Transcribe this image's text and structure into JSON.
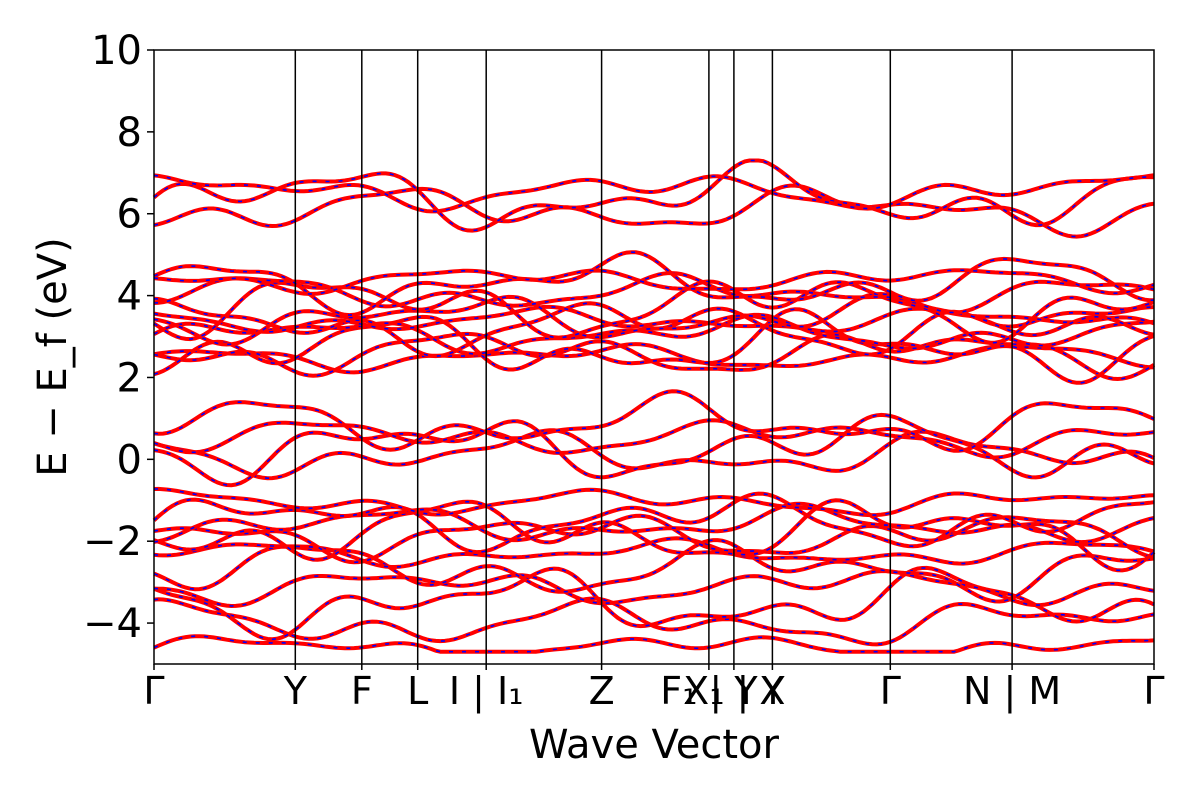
{
  "chart_data": {
    "type": "line",
    "title": "",
    "xlabel": "Wave Vector",
    "ylabel": "E − E_f (eV)",
    "ylim": [
      -5,
      10
    ],
    "yticks": [
      -4,
      -2,
      0,
      2,
      4,
      6,
      8,
      10
    ],
    "ytick_labels": [
      "−4",
      "−2",
      "0",
      "2",
      "4",
      "6",
      "8",
      "10"
    ],
    "xlim": [
      0,
      1
    ],
    "high_symmetry_points": [
      {
        "label": "Γ",
        "x": 0.0
      },
      {
        "label": "Y",
        "x": 0.1413
      },
      {
        "label": "F",
        "x": 0.2078
      },
      {
        "label": "L",
        "x": 0.2637
      },
      {
        "label": "I | I₁",
        "x": 0.3322
      },
      {
        "label": "Z",
        "x": 0.4476
      },
      {
        "label": "F₁ | Y",
        "x": 0.5549
      },
      {
        "label": "X₁ | Y",
        "x": 0.5799
      },
      {
        "label": "X",
        "x": 0.6184
      },
      {
        "label": "Γ",
        "x": 0.7363
      },
      {
        "label": "N | M",
        "x": 0.8581
      },
      {
        "label": "Γ",
        "x": 1.0
      }
    ],
    "series_colors": {
      "solid": "#ff0000",
      "dashed": "#0000ff"
    },
    "grid": false,
    "bands_start_energy": [
      -4.6,
      -4.0,
      -3.5,
      -3.1,
      -2.7,
      -2.3,
      -1.85,
      -1.75,
      -1.6,
      -1.5,
      -1.05,
      0.1,
      0.3,
      0.55,
      0.85,
      2.5,
      2.62,
      2.75,
      3.05,
      3.25,
      3.38,
      3.45,
      3.75,
      4.05,
      4.3,
      4.4,
      6.1,
      6.38,
      6.55
    ]
  }
}
